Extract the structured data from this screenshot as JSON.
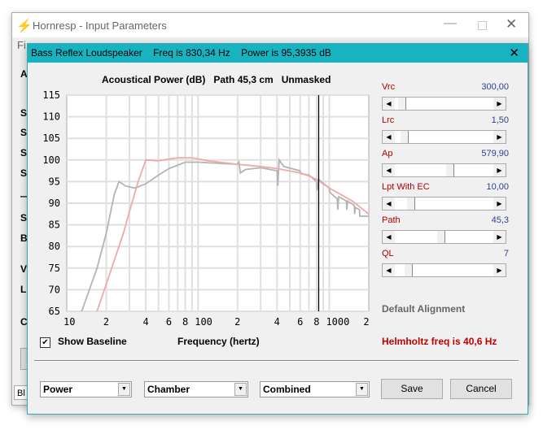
{
  "main_window": {
    "title": "Hornresp - Input Parameters",
    "menu_partial": "Fi",
    "left_letters": [
      "A",
      "S",
      "S",
      "S",
      "S",
      "—",
      "S",
      "B",
      "V",
      "L",
      "C"
    ],
    "status_partial": "Bl"
  },
  "dialog": {
    "title": "Bass Reflex Loudspeaker    Freq is 830,34 Hz    Power is 95,3935 dB",
    "chart_heading": "Acoustical Power (dB)   Path 45,3 cm   Unmasked",
    "show_baseline_label": "Show Baseline",
    "show_baseline_checked": true,
    "params": [
      {
        "label": "Vrc",
        "value": "300,00",
        "slider": 0.03
      },
      {
        "label": "Lrc",
        "value": "1,50",
        "slider": 0.05
      },
      {
        "label": "Ap",
        "value": "579,90",
        "slider": 0.55
      },
      {
        "label": "Lpt  With EC",
        "value": "10,00",
        "slider": 0.12
      },
      {
        "label": "Path",
        "value": "45,3",
        "slider": 0.45
      },
      {
        "label": "QL",
        "value": "7",
        "slider": 0.1
      }
    ],
    "default_alignment": "Default Alignment",
    "helmholtz": "Helmholtz freq is 40,6 Hz",
    "combos": [
      "Power",
      "Chamber",
      "Combined"
    ],
    "save_label": "Save",
    "cancel_label": "Cancel",
    "colors": {
      "title_bar": "#17b3c1",
      "baseline_curve": "#b4b4b4",
      "response_curve": "#f0a8a8",
      "param_label": "#b00000",
      "param_value": "#2a3f8f"
    }
  },
  "chart_data": {
    "type": "line",
    "xscale": "log",
    "xlim": [
      10,
      2000
    ],
    "ylim": [
      65,
      115
    ],
    "grid": true,
    "xlabel": "Frequency (hertz)",
    "yticks": [
      115,
      110,
      105,
      100,
      95,
      90,
      85,
      80,
      75,
      70,
      65
    ],
    "xtick_labels": [
      {
        "v": 10,
        "t": "10"
      },
      {
        "v": 20,
        "t": "2"
      },
      {
        "v": 40,
        "t": "4"
      },
      {
        "v": 60,
        "t": "6"
      },
      {
        "v": 80,
        "t": "8"
      },
      {
        "v": 100,
        "t": "100"
      },
      {
        "v": 200,
        "t": "2"
      },
      {
        "v": 400,
        "t": "4"
      },
      {
        "v": 600,
        "t": "6"
      },
      {
        "v": 800,
        "t": "8"
      },
      {
        "v": 1000,
        "t": "1000"
      },
      {
        "v": 2000,
        "t": "2"
      }
    ],
    "cursor_freq": 830.34,
    "series": [
      {
        "color": "#b4b4b4",
        "points": [
          [
            13,
            65
          ],
          [
            17,
            75
          ],
          [
            20,
            83
          ],
          [
            23,
            92
          ],
          [
            25,
            95
          ],
          [
            28,
            94
          ],
          [
            33,
            93.5
          ],
          [
            40,
            94.5
          ],
          [
            50,
            96.5
          ],
          [
            60,
            98
          ],
          [
            80,
            99.5
          ],
          [
            100,
            99.5
          ],
          [
            150,
            99.2
          ],
          [
            200,
            99
          ],
          [
            205,
            99.5
          ],
          [
            210,
            97
          ],
          [
            230,
            97.8
          ],
          [
            300,
            98.2
          ],
          [
            400,
            97.5
          ],
          [
            405,
            94
          ],
          [
            415,
            100
          ],
          [
            450,
            98.5
          ],
          [
            600,
            97.5
          ],
          [
            610,
            96.8
          ],
          [
            700,
            96.5
          ],
          [
            800,
            95
          ],
          [
            810,
            93
          ],
          [
            830,
            95.5
          ],
          [
            1000,
            93.5
          ],
          [
            1010,
            92.5
          ],
          [
            1150,
            91
          ],
          [
            1160,
            88.5
          ],
          [
            1180,
            91.5
          ],
          [
            1350,
            90.5
          ],
          [
            1360,
            88.5
          ],
          [
            1380,
            90.5
          ],
          [
            1550,
            89.5
          ],
          [
            1560,
            87.5
          ],
          [
            1580,
            89
          ],
          [
            1700,
            88.5
          ],
          [
            1710,
            87
          ],
          [
            2000,
            87
          ]
        ]
      },
      {
        "color": "#f0a8a8",
        "points": [
          [
            17,
            65
          ],
          [
            22,
            75
          ],
          [
            27,
            83
          ],
          [
            30,
            88
          ],
          [
            35,
            95
          ],
          [
            40,
            100
          ],
          [
            50,
            99.8
          ],
          [
            60,
            100.2
          ],
          [
            70,
            100.5
          ],
          [
            90,
            100.5
          ],
          [
            120,
            99.8
          ],
          [
            200,
            99
          ],
          [
            300,
            98.5
          ],
          [
            400,
            98
          ],
          [
            600,
            97
          ],
          [
            700,
            96.3
          ],
          [
            800,
            95.5
          ],
          [
            1000,
            93.5
          ],
          [
            1500,
            90.5
          ],
          [
            2000,
            87.5
          ]
        ]
      }
    ]
  }
}
